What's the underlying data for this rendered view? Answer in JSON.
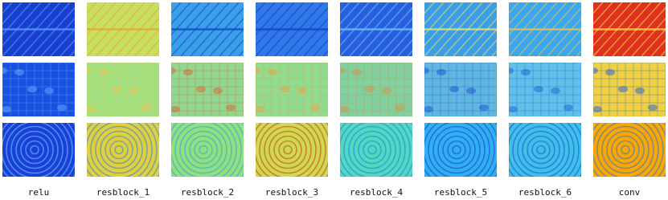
{
  "labels": [
    "relu",
    "resblock_1",
    "resblock_2",
    "resblock_3",
    "resblock_4",
    "resblock_5",
    "resblock_6",
    "conv"
  ]
}
